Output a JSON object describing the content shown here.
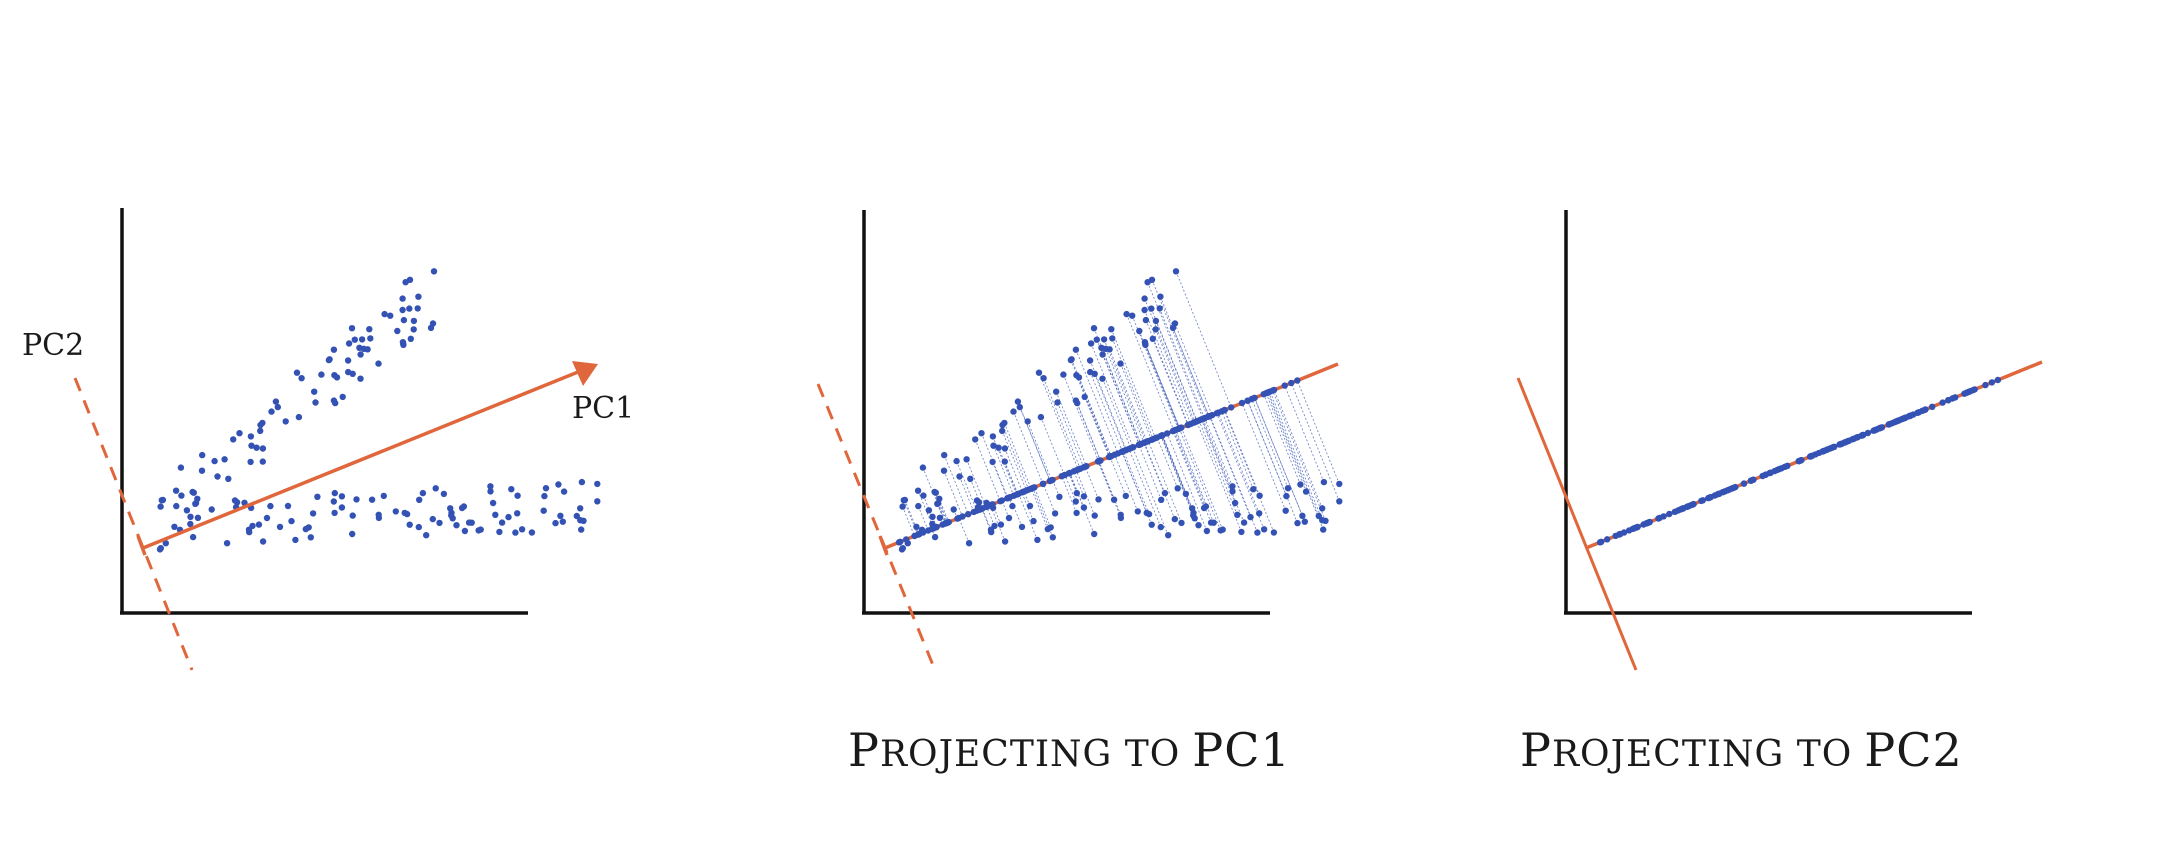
{
  "colors": {
    "point": "#3452b4",
    "axis_line": "#e0663c",
    "frame": "#111111",
    "projection": "#3452b4"
  },
  "panel1": {
    "pc1_label": "PC1",
    "pc2_label": "PC2"
  },
  "panel2": {
    "caption_first": "P",
    "caption_rest": "ROJECTING TO",
    "caption_tail": "PC1"
  },
  "panel3": {
    "caption_first": "P",
    "caption_rest": "ROJECTING TO",
    "caption_tail": "PC2"
  }
}
